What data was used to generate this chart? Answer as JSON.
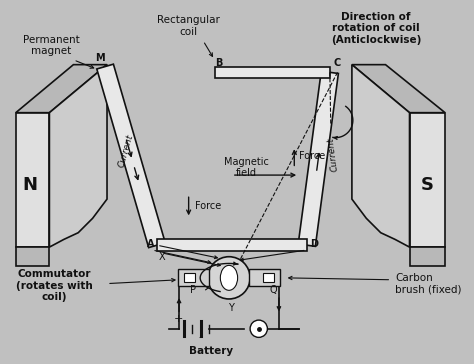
{
  "bg_color": "#c0c0c0",
  "fig_width": 4.74,
  "fig_height": 3.64,
  "dpi": 100,
  "lc": "#111111",
  "tc": "#111111",
  "magnet_face": "#e0e0e0",
  "magnet_side": "#b8b8b8",
  "coil_color": "#d8d8d8",
  "labels": {
    "permanent_magnet": "Permanent\nmagnet",
    "rectangular_coil": "Rectangular\ncoil",
    "direction": "Direction of\nrotation of coil\n(Anticlockwise)",
    "N": "N",
    "S": "S",
    "M": "M",
    "B": "B",
    "C": "C",
    "A": "A",
    "D": "D",
    "X": "X",
    "Y": "Y",
    "P": "P",
    "Q": "Q",
    "force1": "Force",
    "force2": "Force",
    "current1": "Current",
    "current2": "Current",
    "magnetic_field": "Magnetic\nfield",
    "commutator": "Commutator\n(rotates with\ncoil)",
    "carbon_brush": "Carbon\nbrush (fixed)",
    "battery": "Battery"
  }
}
